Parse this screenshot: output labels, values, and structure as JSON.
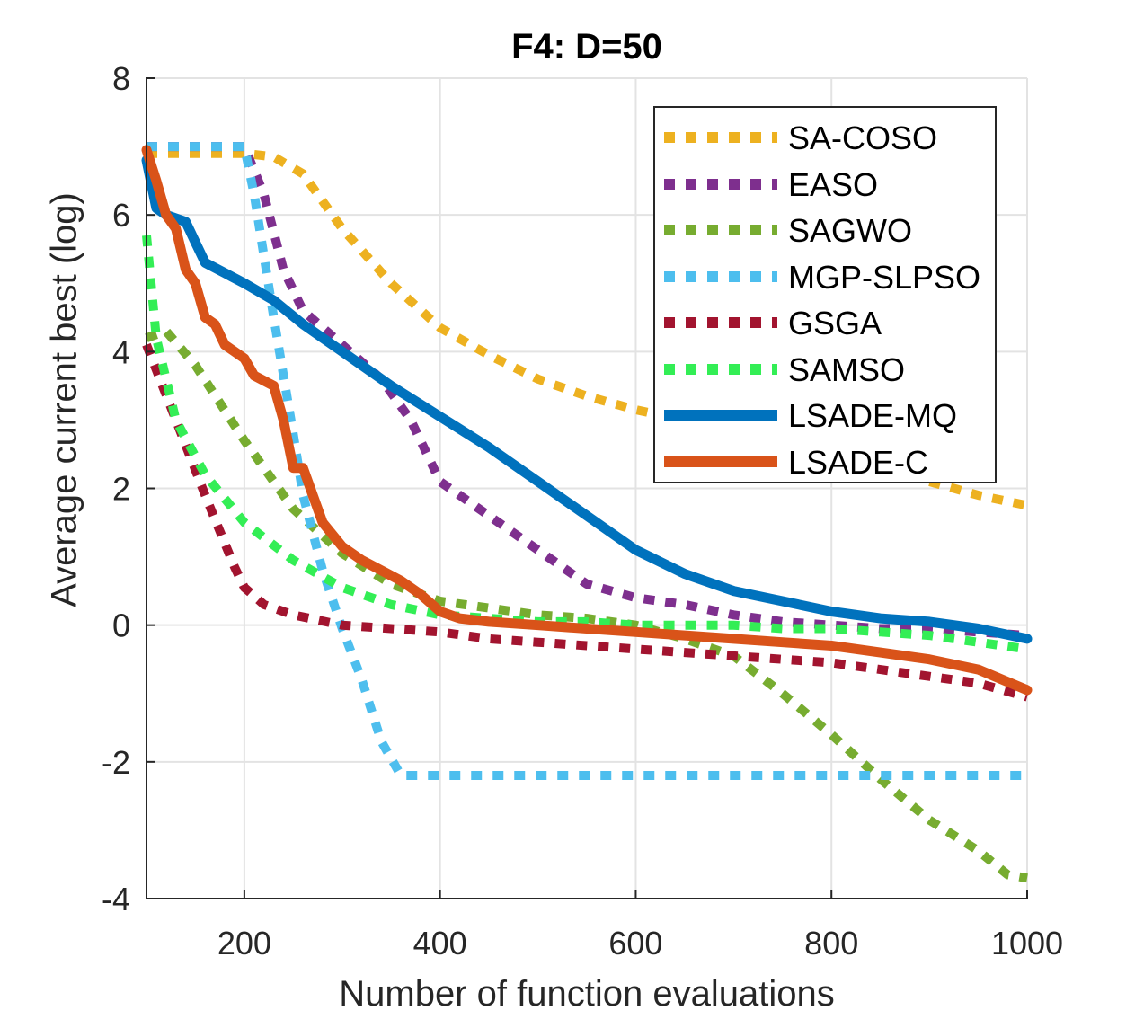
{
  "chart_data": {
    "type": "line",
    "title": "F4: D=50",
    "xlabel": "Number of function evaluations",
    "ylabel": "Average current best (log)",
    "xlim": [
      100,
      1000
    ],
    "ylim": [
      -4,
      8
    ],
    "xticks": [
      200,
      400,
      600,
      800,
      1000
    ],
    "yticks": [
      -4,
      -2,
      0,
      2,
      4,
      6,
      8
    ],
    "xtick_labels": [
      "200",
      "400",
      "600",
      "800",
      "1000"
    ],
    "ytick_labels": [
      "-4",
      "-2",
      "0",
      "2",
      "4",
      "6",
      "8"
    ],
    "grid": true,
    "legend_position": "top-right",
    "series": [
      {
        "name": "SA-COSO",
        "color": "#EDB120",
        "style": "dotted",
        "x": [
          100,
          150,
          200,
          230,
          260,
          300,
          350,
          400,
          450,
          500,
          550,
          600,
          650,
          700,
          750,
          800,
          850,
          900,
          950,
          1000
        ],
        "y": [
          6.9,
          6.9,
          6.9,
          6.85,
          6.6,
          5.8,
          5.0,
          4.35,
          3.95,
          3.6,
          3.35,
          3.15,
          3.0,
          2.85,
          2.7,
          2.55,
          2.35,
          2.1,
          1.9,
          1.75
        ]
      },
      {
        "name": "EASO",
        "color": "#7E2F8E",
        "style": "dotted",
        "x": [
          100,
          150,
          200,
          220,
          240,
          260,
          300,
          340,
          370,
          400,
          450,
          500,
          550,
          600,
          650,
          700,
          750,
          800,
          850,
          900,
          950,
          1000
        ],
        "y": [
          7.0,
          7.0,
          7.0,
          6.3,
          5.2,
          4.6,
          4.1,
          3.6,
          3.0,
          2.1,
          1.6,
          1.1,
          0.6,
          0.4,
          0.3,
          0.15,
          0.05,
          0.0,
          -0.05,
          -0.05,
          -0.1,
          -0.15
        ]
      },
      {
        "name": "SAGWO",
        "color": "#77AC30",
        "style": "dotted",
        "x": [
          100,
          120,
          150,
          200,
          250,
          300,
          350,
          400,
          450,
          500,
          550,
          600,
          650,
          700,
          750,
          800,
          850,
          900,
          950,
          980,
          1000
        ],
        "y": [
          4.2,
          4.3,
          3.8,
          2.7,
          1.7,
          1.05,
          0.6,
          0.35,
          0.25,
          0.15,
          0.1,
          0.0,
          -0.2,
          -0.45,
          -1.0,
          -1.6,
          -2.25,
          -2.85,
          -3.3,
          -3.65,
          -3.7
        ]
      },
      {
        "name": "MGP-SLPSO",
        "color": "#4DBEEE",
        "style": "dotted",
        "x": [
          100,
          200,
          210,
          230,
          250,
          260,
          280,
          300,
          320,
          340,
          360,
          400,
          500,
          600,
          700,
          800,
          900,
          1000
        ],
        "y": [
          7.0,
          7.0,
          6.3,
          4.5,
          2.8,
          1.9,
          0.8,
          -0.05,
          -0.8,
          -1.7,
          -2.2,
          -2.2,
          -2.2,
          -2.2,
          -2.2,
          -2.2,
          -2.2,
          -2.2
        ]
      },
      {
        "name": "GSGA",
        "color": "#A2142F",
        "style": "dotted",
        "x": [
          100,
          130,
          160,
          190,
          200,
          220,
          250,
          300,
          350,
          400,
          450,
          500,
          550,
          600,
          650,
          700,
          750,
          800,
          850,
          900,
          950,
          1000
        ],
        "y": [
          4.1,
          3.0,
          1.9,
          0.85,
          0.55,
          0.3,
          0.15,
          0.0,
          -0.05,
          -0.1,
          -0.2,
          -0.25,
          -0.3,
          -0.35,
          -0.4,
          -0.45,
          -0.5,
          -0.55,
          -0.65,
          -0.75,
          -0.85,
          -1.05
        ]
      },
      {
        "name": "SAMSO",
        "color": "#33EE55",
        "style": "dotted",
        "x": [
          100,
          110,
          130,
          160,
          200,
          250,
          300,
          350,
          400,
          450,
          500,
          550,
          600,
          650,
          700,
          750,
          800,
          850,
          900,
          950,
          1000
        ],
        "y": [
          5.7,
          4.2,
          3.0,
          2.2,
          1.5,
          0.95,
          0.55,
          0.3,
          0.15,
          0.1,
          0.05,
          0.05,
          0.0,
          0.0,
          0.0,
          -0.05,
          -0.05,
          -0.1,
          -0.15,
          -0.25,
          -0.35
        ]
      },
      {
        "name": "LSADE-MQ",
        "color": "#0072BD",
        "style": "solid",
        "x": [
          100,
          110,
          120,
          140,
          150,
          160,
          180,
          200,
          230,
          260,
          300,
          350,
          400,
          450,
          500,
          550,
          600,
          650,
          700,
          750,
          800,
          850,
          900,
          950,
          1000
        ],
        "y": [
          6.8,
          6.1,
          6.0,
          5.9,
          5.6,
          5.3,
          5.15,
          5.0,
          4.75,
          4.4,
          4.0,
          3.5,
          3.05,
          2.6,
          2.1,
          1.6,
          1.1,
          0.75,
          0.5,
          0.35,
          0.2,
          0.1,
          0.05,
          -0.05,
          -0.2
        ]
      },
      {
        "name": "LSADE-C",
        "color": "#D95319",
        "style": "solid",
        "x": [
          100,
          110,
          120,
          130,
          140,
          150,
          160,
          170,
          180,
          200,
          210,
          230,
          240,
          250,
          260,
          270,
          280,
          300,
          320,
          340,
          360,
          380,
          400,
          420,
          450,
          500,
          550,
          600,
          650,
          700,
          750,
          800,
          850,
          900,
          950,
          1000
        ],
        "y": [
          6.95,
          6.5,
          6.0,
          5.8,
          5.2,
          5.0,
          4.5,
          4.4,
          4.1,
          3.9,
          3.65,
          3.5,
          3.0,
          2.3,
          2.3,
          1.9,
          1.5,
          1.15,
          0.95,
          0.8,
          0.65,
          0.45,
          0.2,
          0.1,
          0.05,
          0.0,
          -0.05,
          -0.1,
          -0.15,
          -0.2,
          -0.25,
          -0.3,
          -0.4,
          -0.5,
          -0.65,
          -0.95
        ]
      }
    ]
  }
}
